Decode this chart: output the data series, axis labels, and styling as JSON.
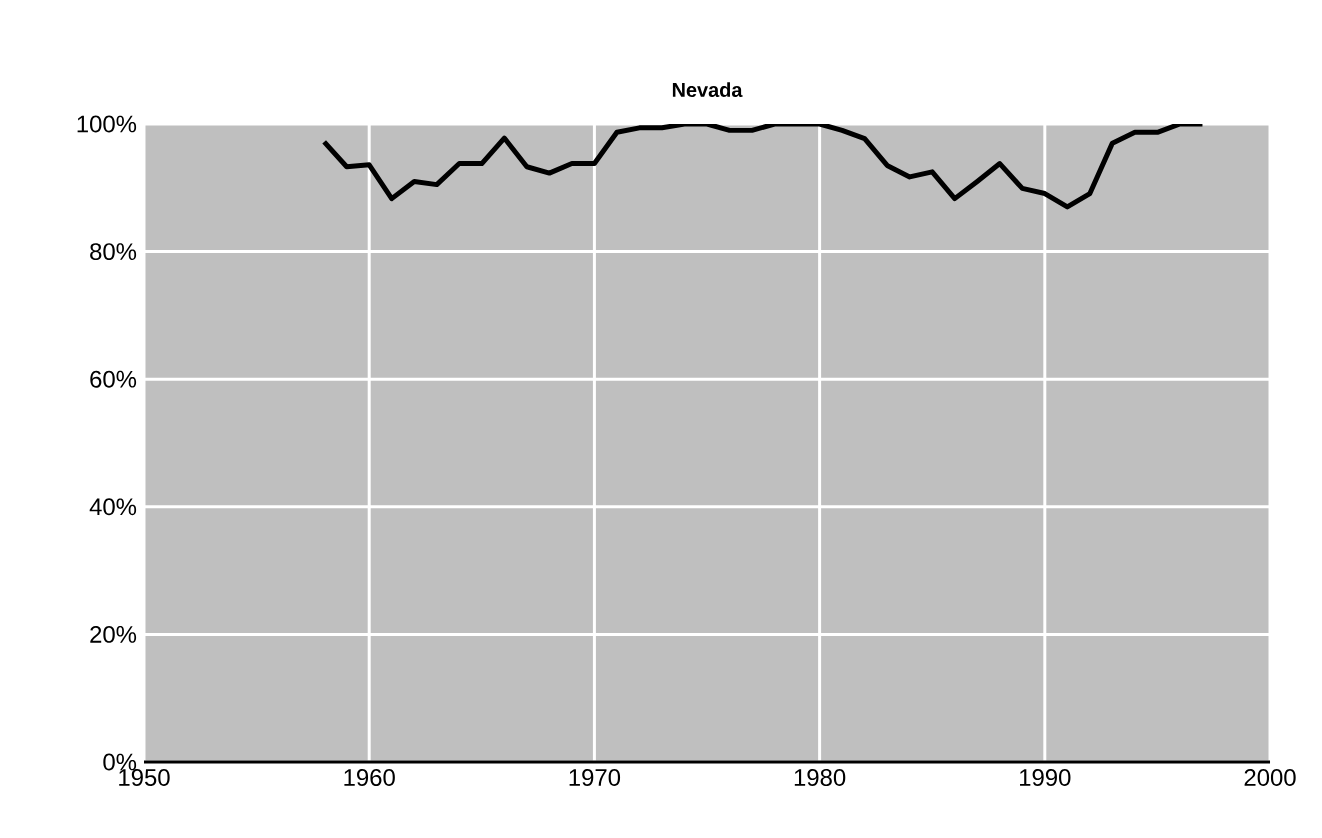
{
  "chart_data": {
    "type": "line",
    "title": "Nevada",
    "x": [
      1958,
      1959,
      1960,
      1961,
      1962,
      1963,
      1964,
      1965,
      1966,
      1967,
      1968,
      1969,
      1970,
      1971,
      1972,
      1973,
      1974,
      1975,
      1976,
      1977,
      1978,
      1979,
      1980,
      1981,
      1982,
      1983,
      1984,
      1985,
      1986,
      1987,
      1988,
      1989,
      1990,
      1991,
      1992,
      1993,
      1994,
      1995,
      1996,
      1997
    ],
    "series": [
      {
        "color": "#000000",
        "values": [
          97.2,
          93.3,
          93.6,
          88.3,
          91,
          90.5,
          93.8,
          93.8,
          97.8,
          93.3,
          92.3,
          93.8,
          93.8,
          98.7,
          99.4,
          99.4,
          100,
          100,
          99,
          99,
          100,
          100,
          100,
          99,
          97.7,
          93.5,
          91.7,
          92.5,
          88.3,
          91,
          93.8,
          89.9,
          89.1,
          87,
          89.1,
          97,
          98.7,
          98.7,
          100,
          100
        ]
      }
    ],
    "xlim": [
      1950,
      2000
    ],
    "xticks": [
      1950,
      1960,
      1970,
      1980,
      1990,
      2000
    ],
    "ylim": [
      0,
      100
    ],
    "yticks": [
      {
        "value": 0,
        "label": "0%"
      },
      {
        "value": 20,
        "label": "20%"
      },
      {
        "value": 40,
        "label": "40%"
      },
      {
        "value": 60,
        "label": "60%"
      },
      {
        "value": 80,
        "label": "80%"
      },
      {
        "value": 100,
        "label": "100%"
      }
    ],
    "grid": true,
    "marker": "none",
    "line_style": "solid"
  }
}
